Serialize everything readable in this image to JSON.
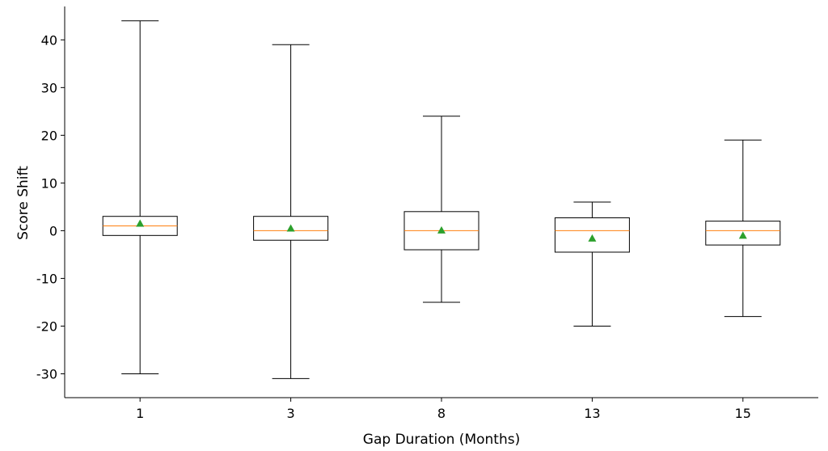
{
  "chart_data": {
    "type": "box",
    "xlabel": "Gap Duration (Months)",
    "ylabel": "Score Shift",
    "ylim": [
      -35,
      47
    ],
    "yticks": [
      40,
      30,
      20,
      10,
      0,
      -10,
      -20,
      -30
    ],
    "ytick_labels": [
      "40",
      "30",
      "20",
      "10",
      "0",
      "-10",
      "-20",
      "-30"
    ],
    "categories": [
      "1",
      "3",
      "8",
      "13",
      "15"
    ],
    "boxes": [
      {
        "category": "1",
        "whisker_low": -30,
        "q1": -1,
        "median": 1,
        "q3": 3,
        "whisker_high": 44,
        "mean": 1.5
      },
      {
        "category": "3",
        "whisker_low": -31,
        "q1": -2,
        "median": 0,
        "q3": 3,
        "whisker_high": 39,
        "mean": 0.5
      },
      {
        "category": "8",
        "whisker_low": -15,
        "q1": -4,
        "median": 0,
        "q3": 4,
        "whisker_high": 24,
        "mean": 0.1
      },
      {
        "category": "13",
        "whisker_low": -20,
        "q1": -4.5,
        "median": 0,
        "q3": 2.7,
        "whisker_high": 6,
        "mean": -1.6
      },
      {
        "category": "15",
        "whisker_low": -18,
        "q1": -3,
        "median": 0,
        "q3": 2,
        "whisker_high": 19,
        "mean": -1.0
      }
    ],
    "grid": false,
    "colors": {
      "box": "#000000",
      "median": "#ff7f0e",
      "mean": "#2ca02c"
    }
  }
}
